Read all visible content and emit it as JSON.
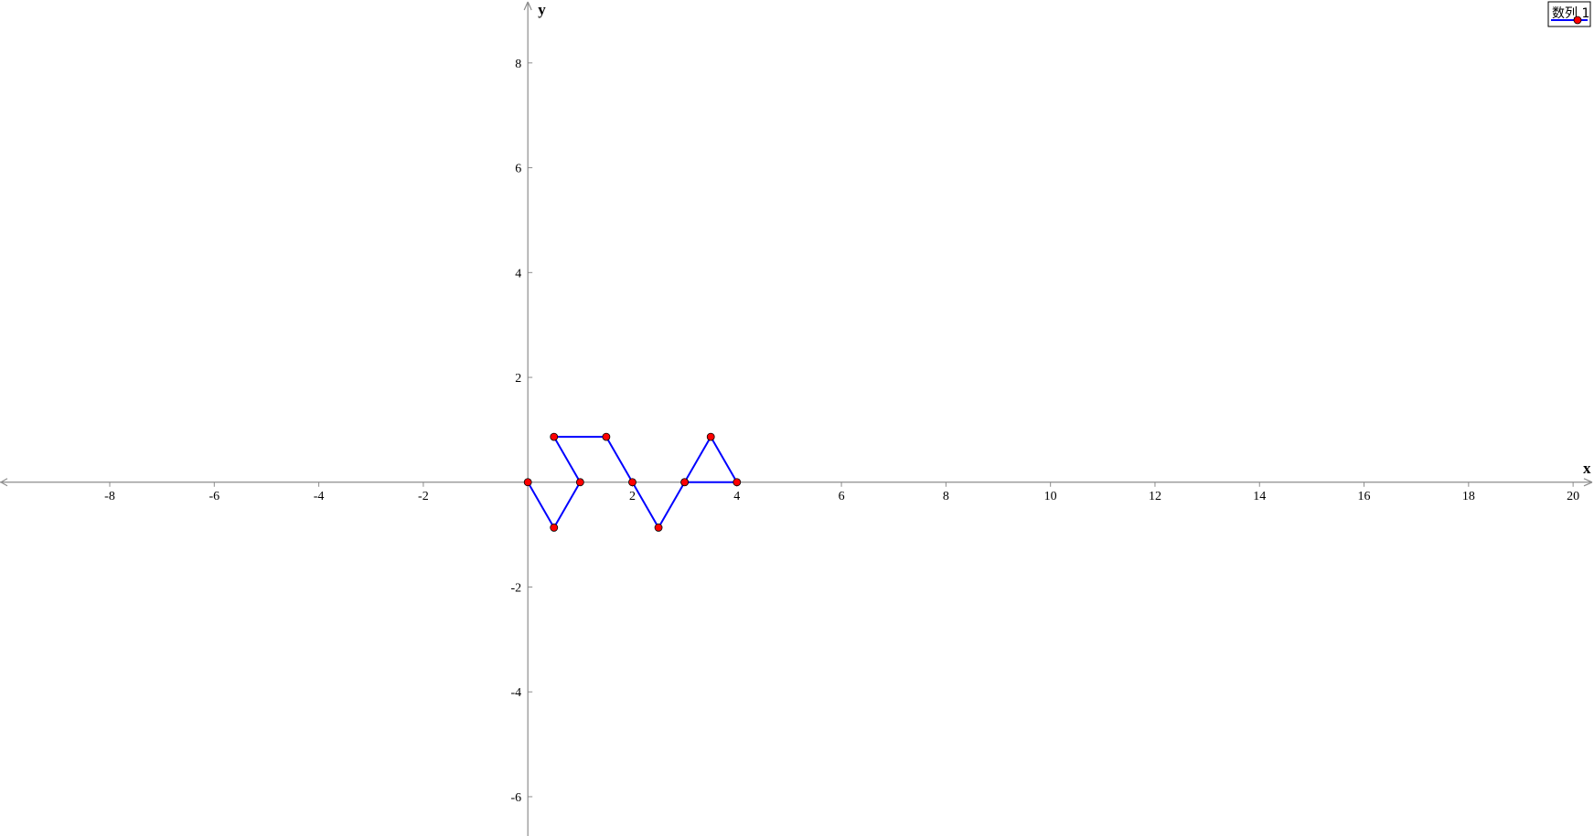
{
  "chart_data": {
    "type": "line",
    "xlabel": "x",
    "ylabel": "y",
    "xlim": [
      -10.1,
      20.4
    ],
    "ylim": [
      -6.75,
      9.2
    ],
    "grid": false,
    "legend_position": "top-right",
    "x_ticks": [
      -8,
      -6,
      -4,
      -2,
      2,
      4,
      6,
      8,
      10,
      12,
      14,
      16,
      18,
      20
    ],
    "y_ticks": [
      8,
      6,
      4,
      2,
      -2,
      -4,
      -6
    ],
    "x_tick_labels": [
      "-8",
      "-6",
      "-4",
      "-2",
      "2",
      "4",
      "6",
      "8",
      "10",
      "12",
      "14",
      "16",
      "18",
      "20"
    ],
    "y_tick_labels": [
      "8",
      "6",
      "4",
      "2",
      "-2",
      "-4",
      "-6"
    ],
    "series": [
      {
        "name": "数列 1",
        "line_color": "#0000ff",
        "marker_color": "#ff0000",
        "x": [
          0,
          0.5,
          1,
          0.5,
          1.5,
          2,
          2.5,
          3,
          3.5,
          4,
          3
        ],
        "y": [
          0,
          -0.866,
          0,
          0.866,
          0.866,
          0,
          -0.866,
          0,
          0.866,
          0,
          0
        ]
      }
    ]
  }
}
